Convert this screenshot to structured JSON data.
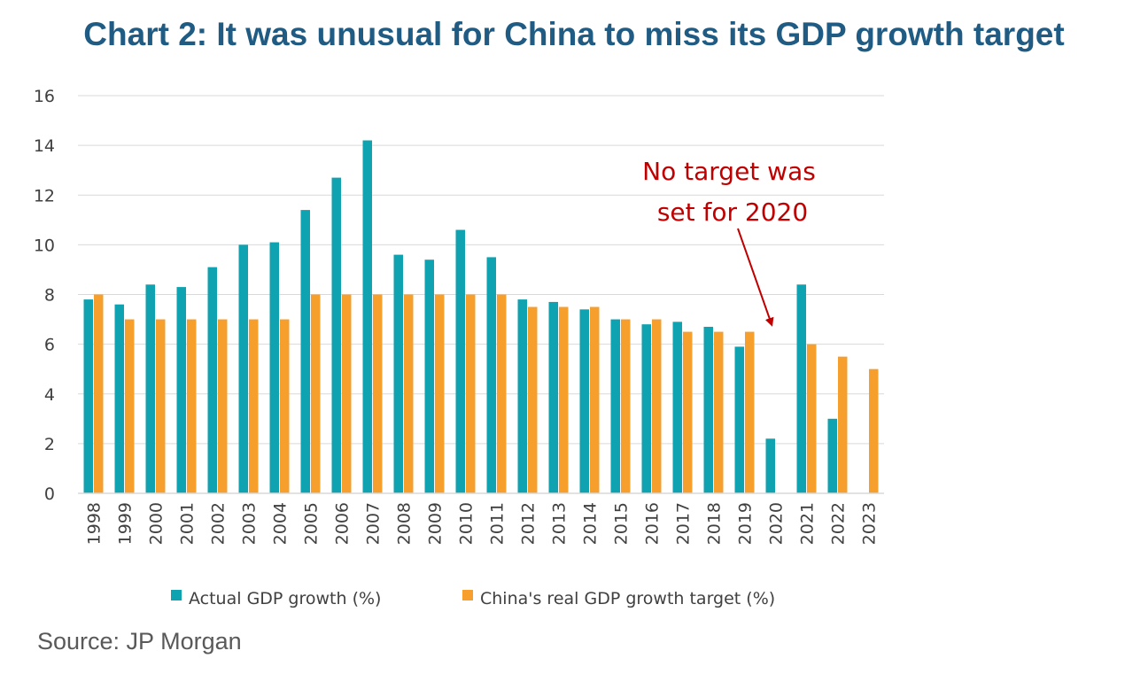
{
  "title": "Chart 2: It was unusual for China to miss its GDP growth target",
  "source": "Source: JP Morgan",
  "colors": {
    "title": "#1f5b82",
    "actual": "#0fa3b1",
    "target": "#f79f2c",
    "annotation": "#c00000",
    "grid": "#d9d9d9"
  },
  "chart_data": {
    "type": "bar",
    "title": "",
    "xlabel": "",
    "ylabel": "",
    "ylim": [
      0,
      16
    ],
    "yticks": [
      "0",
      "2",
      "4",
      "6",
      "8",
      "10",
      "12",
      "14",
      "16"
    ],
    "grid": true,
    "legend_position": "bottom",
    "categories": [
      "1998",
      "1999",
      "2000",
      "2001",
      "2002",
      "2003",
      "2004",
      "2005",
      "2006",
      "2007",
      "2008",
      "2009",
      "2010",
      "2011",
      "2012",
      "2013",
      "2014",
      "2015",
      "2016",
      "2017",
      "2018",
      "2019",
      "2020",
      "2021",
      "2022",
      "2023"
    ],
    "series": [
      {
        "name": "Actual GDP growth (%)",
        "values": [
          7.8,
          7.6,
          8.4,
          8.3,
          9.1,
          10.0,
          10.1,
          11.4,
          12.7,
          14.2,
          9.6,
          9.4,
          10.6,
          9.5,
          7.8,
          7.7,
          7.4,
          7.0,
          6.8,
          6.9,
          6.7,
          5.9,
          2.2,
          8.4,
          3.0,
          null
        ]
      },
      {
        "name": "China's real GDP growth target (%)",
        "values": [
          8,
          7,
          7,
          7,
          7,
          7,
          7,
          8,
          8,
          8,
          8,
          8,
          8,
          8,
          7.5,
          7.5,
          7.5,
          7,
          7,
          6.5,
          6.5,
          6.5,
          null,
          6,
          5.5,
          5
        ]
      }
    ],
    "annotations": [
      {
        "lines": [
          "No target was",
          "set for 2020"
        ],
        "points_to": "2020"
      }
    ]
  }
}
